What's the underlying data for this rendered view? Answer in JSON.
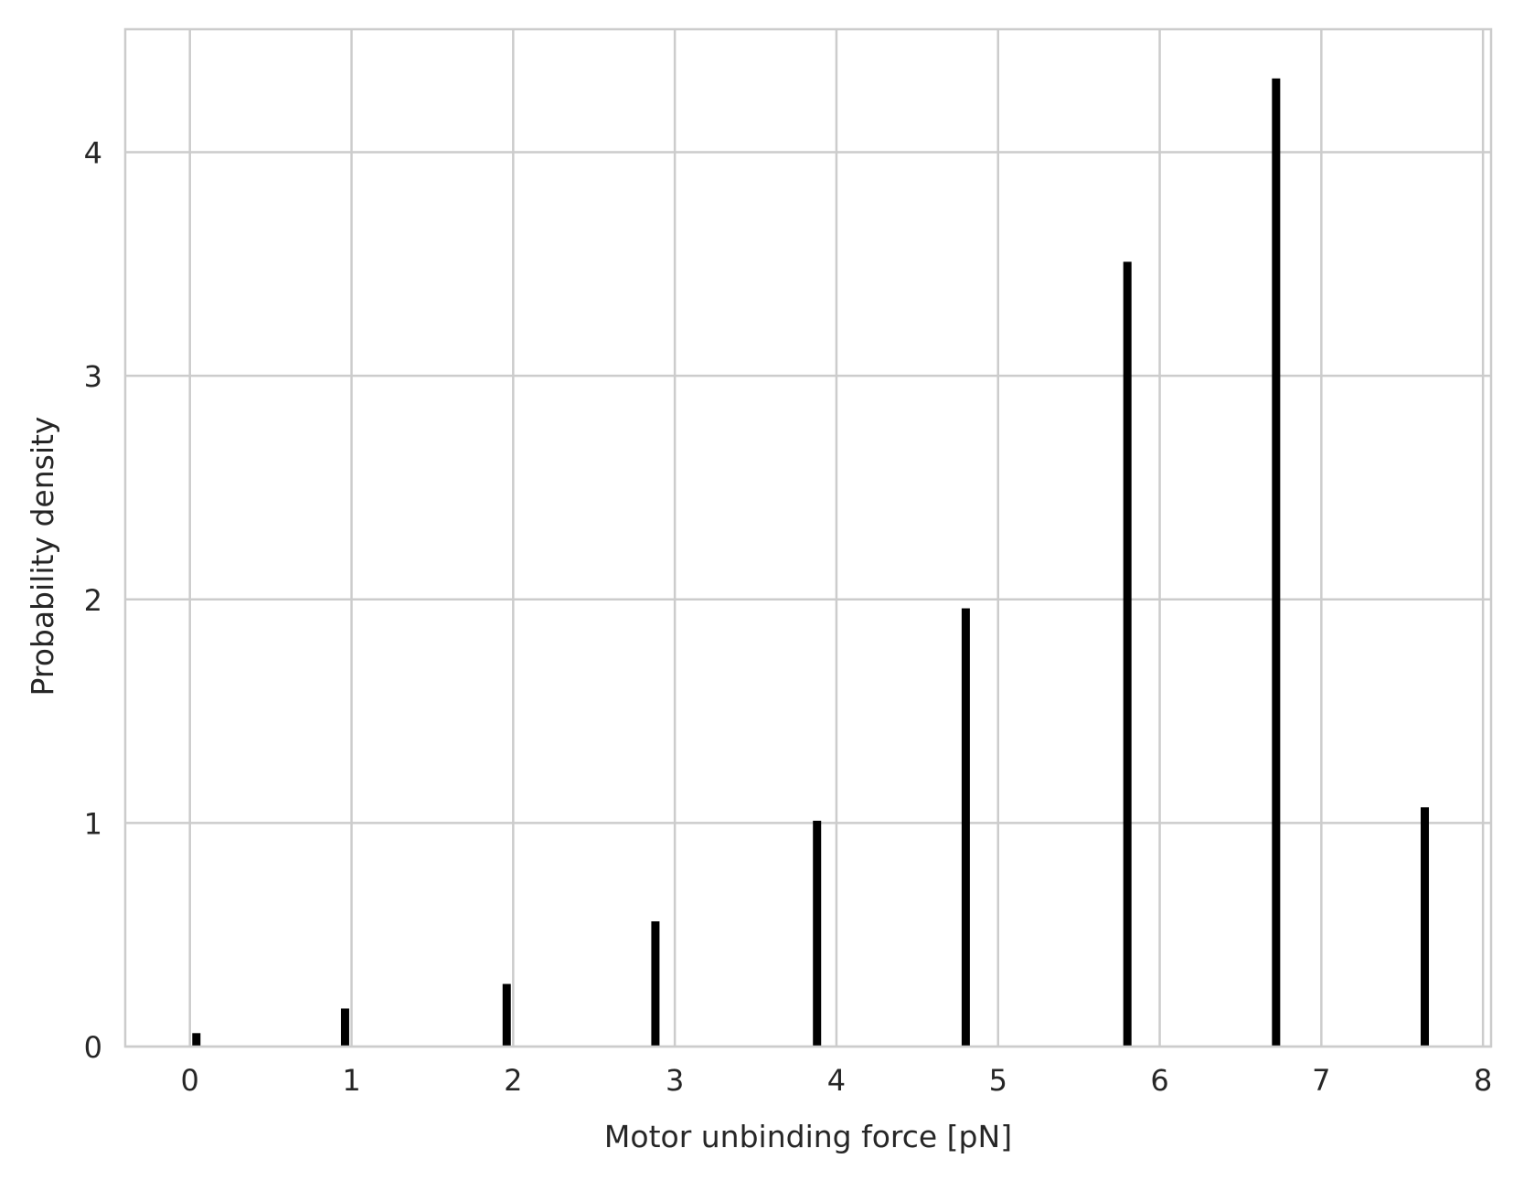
{
  "chart_data": {
    "type": "bar",
    "title": "",
    "xlabel": "Motor unbinding force [pN]",
    "ylabel": "Probability density",
    "xlim": [
      -0.4,
      8.05
    ],
    "ylim": [
      0,
      4.55
    ],
    "xticks": [
      0,
      1,
      2,
      3,
      4,
      5,
      6,
      7,
      8
    ],
    "yticks": [
      0,
      1,
      2,
      3,
      4
    ],
    "grid": true,
    "legend": "none",
    "bar_color": "#000000",
    "grid_color": "#cccccc",
    "bars": [
      {
        "x": 0.04,
        "value": 0.06
      },
      {
        "x": 0.96,
        "value": 0.17
      },
      {
        "x": 1.96,
        "value": 0.28
      },
      {
        "x": 2.88,
        "value": 0.56
      },
      {
        "x": 3.88,
        "value": 1.01
      },
      {
        "x": 4.8,
        "value": 1.96
      },
      {
        "x": 5.8,
        "value": 3.51
      },
      {
        "x": 6.72,
        "value": 4.33
      },
      {
        "x": 7.64,
        "value": 1.07
      }
    ]
  }
}
